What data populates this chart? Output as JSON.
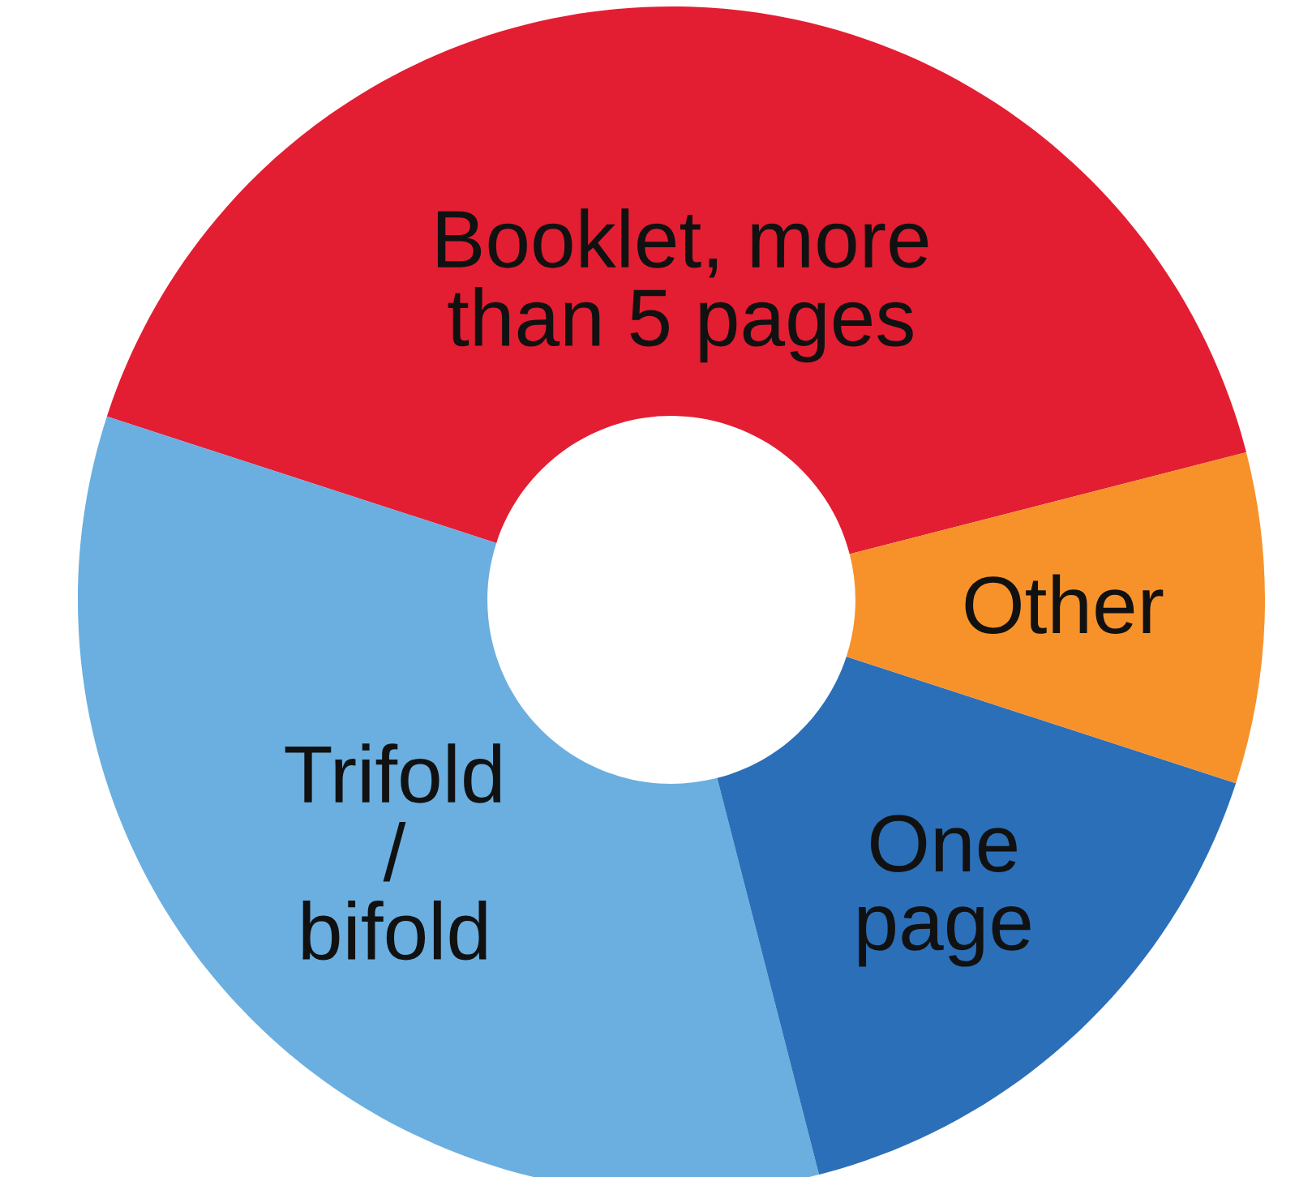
{
  "chart_data": {
    "type": "donut",
    "categories": [
      "Booklet, more\nthan 5 pages",
      "Trifold\n/\nbifold",
      "One\npage",
      "Other"
    ],
    "values": [
      41,
      34,
      16,
      9
    ],
    "colors": [
      "#e31e32",
      "#6aafe0",
      "#2b6fb8",
      "#f7922a"
    ]
  }
}
